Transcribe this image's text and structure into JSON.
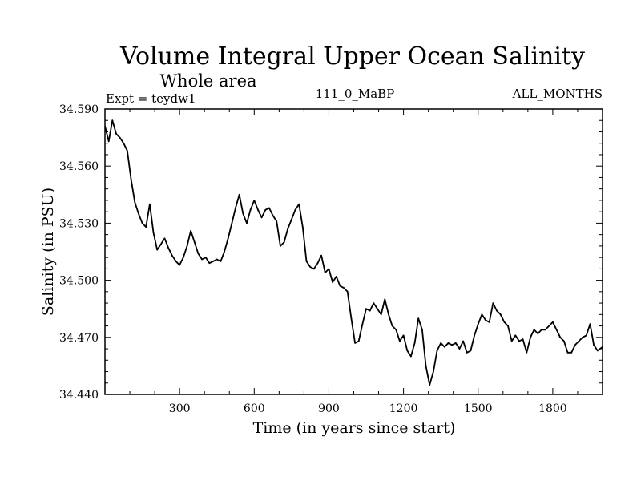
{
  "chart_data": {
    "type": "line",
    "title": "Volume Integral Upper Ocean Salinity",
    "subtitle": "Whole area",
    "annotations": {
      "experiment": "Expt = teydw1",
      "run_id": "111_0_MaBP",
      "months": "ALL_MONTHS"
    },
    "xlabel": "Time (in years since start)",
    "ylabel": "Salinity (in PSU)",
    "xlim": [
      0,
      2000
    ],
    "ylim": [
      34.44,
      34.59
    ],
    "x_ticks": [
      300,
      600,
      900,
      1200,
      1500,
      1800
    ],
    "x_tick_labels": [
      "300",
      "600",
      "900",
      "1200",
      "1500",
      "1800"
    ],
    "y_ticks": [
      34.44,
      34.47,
      34.5,
      34.53,
      34.56,
      34.59
    ],
    "y_tick_labels": [
      "34.440",
      "34.470",
      "34.500",
      "34.530",
      "34.560",
      "34.590"
    ],
    "grid": false,
    "series": [
      {
        "name": "salinity",
        "color": "#000000",
        "x": [
          0,
          15,
          30,
          45,
          60,
          75,
          90,
          105,
          120,
          135,
          150,
          165,
          180,
          195,
          210,
          225,
          240,
          255,
          270,
          285,
          300,
          315,
          330,
          345,
          360,
          375,
          390,
          405,
          420,
          435,
          450,
          465,
          480,
          495,
          510,
          525,
          540,
          555,
          570,
          585,
          600,
          615,
          630,
          645,
          660,
          675,
          690,
          705,
          720,
          735,
          750,
          765,
          780,
          795,
          810,
          825,
          840,
          855,
          870,
          885,
          900,
          915,
          930,
          945,
          960,
          975,
          990,
          1005,
          1020,
          1035,
          1050,
          1065,
          1080,
          1095,
          1110,
          1125,
          1140,
          1155,
          1170,
          1185,
          1200,
          1215,
          1230,
          1245,
          1260,
          1275,
          1290,
          1305,
          1320,
          1335,
          1350,
          1365,
          1380,
          1395,
          1410,
          1425,
          1440,
          1455,
          1470,
          1485,
          1500,
          1515,
          1530,
          1545,
          1560,
          1575,
          1590,
          1605,
          1620,
          1635,
          1650,
          1665,
          1680,
          1695,
          1710,
          1725,
          1740,
          1755,
          1770,
          1785,
          1800,
          1815,
          1830,
          1845,
          1860,
          1875,
          1890,
          1905,
          1920,
          1935,
          1950,
          1965,
          1980,
          2000
        ],
        "values": [
          34.581,
          34.573,
          34.584,
          34.577,
          34.575,
          34.572,
          34.568,
          34.553,
          34.541,
          34.535,
          34.53,
          34.528,
          34.54,
          34.525,
          34.516,
          34.519,
          34.522,
          34.517,
          34.513,
          34.51,
          34.508,
          34.512,
          34.518,
          34.526,
          34.52,
          34.514,
          34.511,
          34.512,
          34.509,
          34.51,
          34.511,
          34.51,
          34.515,
          34.522,
          34.53,
          34.538,
          34.545,
          34.535,
          34.53,
          34.537,
          34.542,
          34.537,
          34.533,
          34.537,
          34.538,
          34.534,
          34.531,
          34.518,
          34.52,
          34.527,
          34.532,
          34.537,
          34.54,
          34.528,
          34.51,
          34.507,
          34.506,
          34.509,
          34.513,
          34.504,
          34.506,
          34.499,
          34.502,
          34.497,
          34.496,
          34.494,
          34.48,
          34.467,
          34.468,
          34.477,
          34.485,
          34.484,
          34.488,
          34.485,
          34.482,
          34.49,
          34.482,
          34.476,
          34.474,
          34.468,
          34.471,
          34.463,
          34.46,
          34.467,
          34.48,
          34.474,
          34.455,
          34.445,
          34.452,
          34.463,
          34.467,
          34.465,
          34.467,
          34.466,
          34.467,
          34.464,
          34.468,
          34.462,
          34.463,
          34.471,
          34.477,
          34.482,
          34.479,
          34.478,
          34.488,
          34.484,
          34.482,
          34.478,
          34.476,
          34.468,
          34.471,
          34.468,
          34.469,
          34.462,
          34.47,
          34.474,
          34.472,
          34.474,
          34.474,
          34.476,
          34.478,
          34.474,
          34.47,
          34.468,
          34.462,
          34.462,
          34.466,
          34.468,
          34.47,
          34.471,
          34.477,
          34.466,
          34.463,
          34.465
        ]
      }
    ]
  }
}
